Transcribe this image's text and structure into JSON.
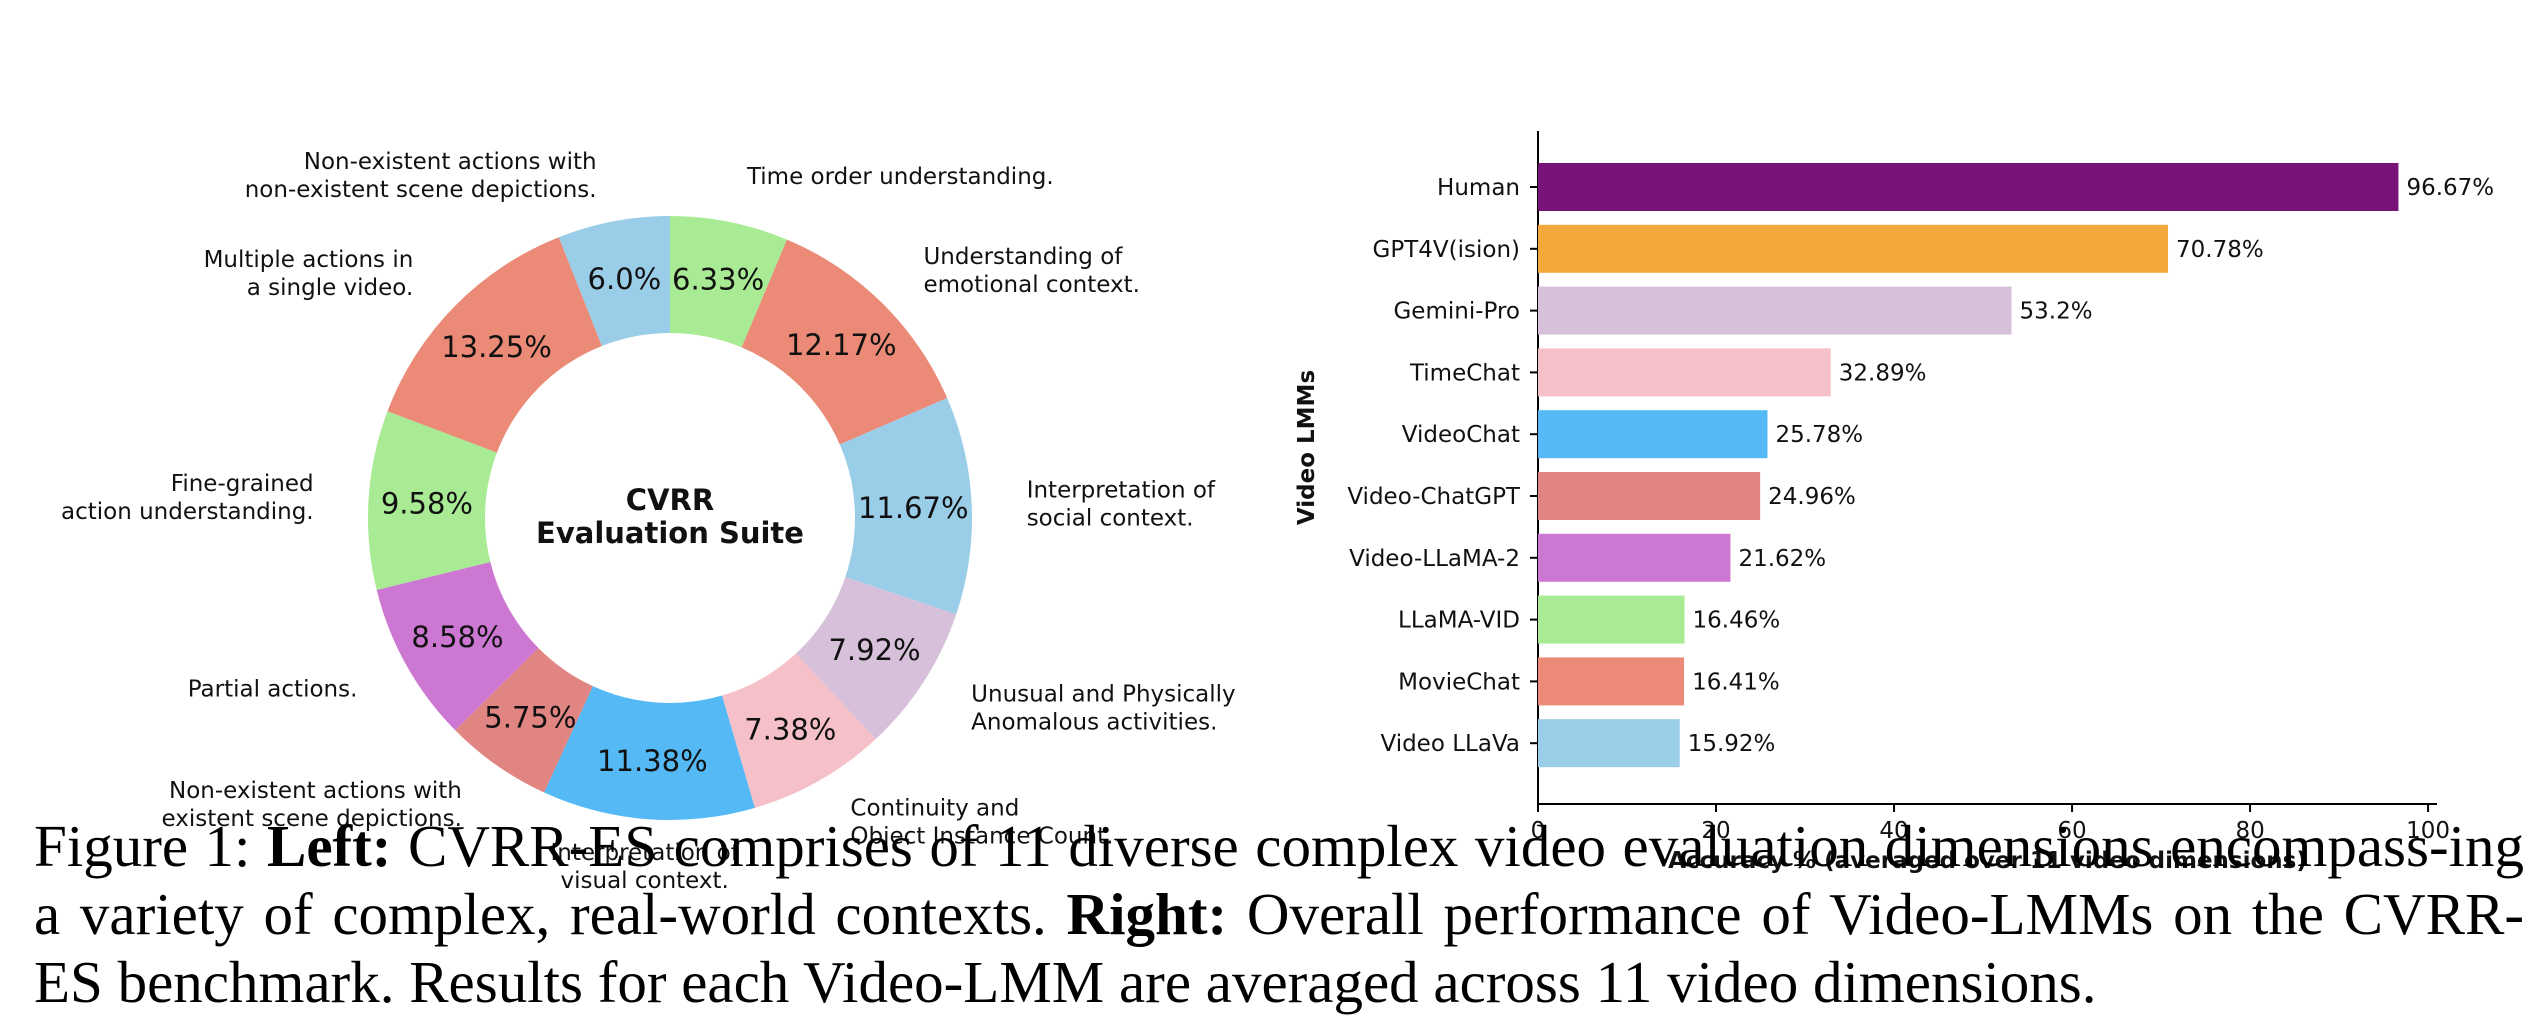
{
  "chart_data": [
    {
      "type": "pie",
      "center_label": [
        "CVRR",
        "Evaluation Suite"
      ],
      "slices": [
        {
          "pct": 6.33,
          "value_label": "6.33%",
          "label": [
            "Time order understanding."
          ],
          "color": "#a8eb94"
        },
        {
          "pct": 12.17,
          "value_label": "12.17%",
          "label": [
            "Understanding of",
            "emotional context."
          ],
          "color": "#ea8a77"
        },
        {
          "pct": 11.67,
          "value_label": "11.67%",
          "label": [
            "Interpretation of",
            "social context."
          ],
          "color": "#9acde8"
        },
        {
          "pct": 7.92,
          "value_label": "7.92%",
          "label": [
            "Unusual and Physically",
            "Anomalous activities."
          ],
          "color": "#d7c0da"
        },
        {
          "pct": 7.38,
          "value_label": "7.38%",
          "label": [
            "Continuity and",
            "Object Instance Count."
          ],
          "color": "#f6c0c8"
        },
        {
          "pct": 11.38,
          "value_label": "11.38%",
          "label": [
            "Interpretation of",
            "visual context."
          ],
          "color": "#55b9f6"
        },
        {
          "pct": 5.75,
          "value_label": "5.75%",
          "label": [
            "Non-existent actions with",
            "existent scene depictions."
          ],
          "color": "#e08581"
        },
        {
          "pct": 8.58,
          "value_label": "8.58%",
          "label": [
            "Partial actions."
          ],
          "color": "#cc78d2"
        },
        {
          "pct": 9.58,
          "value_label": "9.58%",
          "label": [
            "Fine-grained",
            "action understanding."
          ],
          "color": "#a8eb94"
        },
        {
          "pct": 13.25,
          "value_label": "13.25%",
          "label": [
            "Multiple actions in",
            "a single video."
          ],
          "color": "#ea8a77"
        },
        {
          "pct": 6.0,
          "value_label": "6.0%",
          "label": [
            "Non-existent actions with",
            "non-existent scene depictions."
          ],
          "color": "#9acde8"
        }
      ]
    },
    {
      "type": "bar",
      "orientation": "horizontal",
      "ylabel": "Video LMMs",
      "xlabel": "Accuracy % (averaged over 11 video dimensions)",
      "xlim": [
        0,
        101
      ],
      "xticks": [
        "0",
        "20",
        "40",
        "60",
        "80",
        "100"
      ],
      "categories": [
        "Human",
        "GPT4V(ision)",
        "Gemini-Pro",
        "TimeChat",
        "VideoChat",
        "Video-ChatGPT",
        "Video-LLaMA-2",
        "LLaMA-VID",
        "MovieChat",
        "Video LLaVa"
      ],
      "values": [
        96.67,
        70.78,
        53.2,
        32.89,
        25.78,
        24.96,
        21.62,
        16.46,
        16.41,
        15.92
      ],
      "value_labels": [
        "96.67%",
        "70.78%",
        "53.2%",
        "32.89%",
        "25.78%",
        "24.96%",
        "21.62%",
        "16.46%",
        "16.41%",
        "15.92%"
      ],
      "colors": [
        "#781478",
        "#f2a83b",
        "#d7c0da",
        "#f6c0c8",
        "#55b9f6",
        "#e08581",
        "#cc78d2",
        "#a8eb94",
        "#ea8a77",
        "#9acde8"
      ]
    }
  ],
  "caption": {
    "figure": "Figure 1: ",
    "left_bold": "Left:",
    "left_text": " CVRR-ES comprises of 11 diverse complex video evaluation dimensions encompass-ing a variety of complex, real-world contexts. ",
    "right_bold": "Right:",
    "right_text": " Overall performance of Video-LMMs on the CVRR-ES benchmark. Results for each Video-LMM are averaged across 11 video dimensions."
  }
}
